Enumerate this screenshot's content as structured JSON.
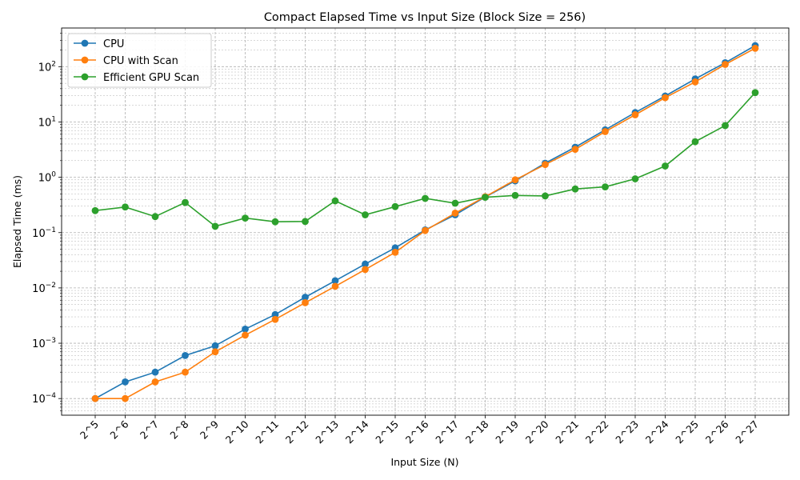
{
  "chart_data": {
    "type": "line",
    "title": "Compact Elapsed Time vs Input Size (Block Size = 256)",
    "xlabel": "Input Size (N)",
    "ylabel": "Elapsed Time (ms)",
    "yscale": "log",
    "ylim": [
      5e-05,
      500
    ],
    "grid": true,
    "legend_position": "top-left",
    "categories": [
      "2^5",
      "2^6",
      "2^7",
      "2^8",
      "2^9",
      "2^10",
      "2^11",
      "2^12",
      "2^13",
      "2^14",
      "2^15",
      "2^16",
      "2^17",
      "2^18",
      "2^19",
      "2^20",
      "2^21",
      "2^22",
      "2^23",
      "2^24",
      "2^25",
      "2^26",
      "2^27"
    ],
    "y_ticks": [
      {
        "value": 0.0001,
        "label": "10^-4"
      },
      {
        "value": 0.001,
        "label": "10^-3"
      },
      {
        "value": 0.01,
        "label": "10^-2"
      },
      {
        "value": 0.1,
        "label": "10^-1"
      },
      {
        "value": 1,
        "label": "10^0"
      },
      {
        "value": 10,
        "label": "10^1"
      },
      {
        "value": 100,
        "label": "10^2"
      }
    ],
    "series": [
      {
        "name": "CPU",
        "color": "#1f77b4",
        "values": [
          0.0001,
          0.0002,
          0.0003,
          0.0006,
          0.0009,
          0.0018,
          0.0033,
          0.0068,
          0.0135,
          0.027,
          0.053,
          0.112,
          0.21,
          0.44,
          0.86,
          1.8,
          3.5,
          7.2,
          14.8,
          29.5,
          60,
          118,
          240
        ]
      },
      {
        "name": "CPU with Scan",
        "color": "#ff7f0e",
        "values": [
          0.0001,
          0.0001,
          0.0002,
          0.0003,
          0.0007,
          0.0014,
          0.0027,
          0.0054,
          0.0107,
          0.0215,
          0.044,
          0.109,
          0.225,
          0.445,
          0.9,
          1.7,
          3.2,
          6.7,
          13.5,
          27.5,
          53,
          110,
          215
        ]
      },
      {
        "name": "Efficient GPU Scan",
        "color": "#2ca02c",
        "values": [
          0.25,
          0.29,
          0.195,
          0.35,
          0.13,
          0.183,
          0.157,
          0.159,
          0.375,
          0.21,
          0.295,
          0.415,
          0.34,
          0.435,
          0.47,
          0.46,
          0.615,
          0.67,
          0.94,
          1.6,
          4.4,
          8.6,
          34
        ]
      }
    ]
  }
}
